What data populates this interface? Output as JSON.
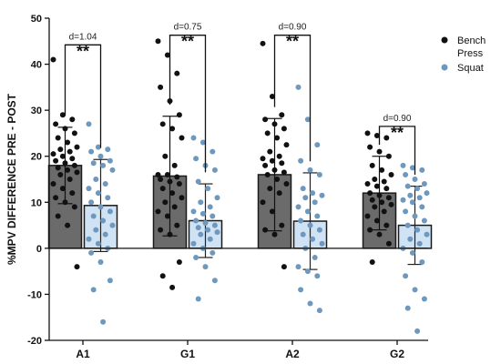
{
  "chart_data": {
    "type": "bar",
    "ylabel": "%MPV DIFFERENCE PRE - POST",
    "ylim": [
      -20,
      50
    ],
    "yticks": [
      -20,
      -10,
      0,
      10,
      20,
      30,
      40,
      50
    ],
    "categories": [
      "A1",
      "G1",
      "A2",
      "G2"
    ],
    "grid": false,
    "legend_position": "top-right",
    "colors": {
      "bench_bar": "#6b6b6b",
      "squat_bar": "#cfe3f4",
      "bench_point": "#111111",
      "squat_point": "#6f98be",
      "squat_bar_edge": "#1a1a1a"
    },
    "series": [
      {
        "name": "Bench Press",
        "values": [
          18,
          15.7,
          16,
          12
        ],
        "sd": [
          8.3,
          13,
          12.2,
          8
        ],
        "points": [
          [
            41,
            29,
            28,
            27,
            26,
            25,
            24,
            23,
            22,
            21.5,
            21,
            20.5,
            20,
            19.5,
            19,
            18.5,
            18,
            17.5,
            17,
            16.5,
            16,
            15,
            14,
            13,
            12,
            11,
            10,
            9,
            7,
            5,
            -4
          ],
          [
            45,
            42,
            38,
            35,
            32,
            29,
            27,
            26,
            24,
            20,
            18,
            16,
            16,
            15.5,
            15,
            14.5,
            14,
            13,
            12,
            11,
            10,
            9,
            8,
            7,
            5,
            4,
            3,
            -3,
            -6,
            -8.5
          ],
          [
            44.5,
            33,
            29,
            28,
            27,
            26,
            25,
            24,
            22.5,
            21,
            20,
            19.5,
            19,
            18.5,
            18,
            17,
            16.5,
            16,
            15,
            14,
            13,
            12,
            10,
            8,
            5,
            4,
            3,
            -4
          ],
          [
            25,
            24.5,
            24,
            22,
            21,
            20,
            18,
            17,
            16,
            15,
            14.5,
            14,
            13.5,
            13,
            12,
            11.5,
            11,
            10.5,
            10,
            9.5,
            9,
            8,
            7,
            6,
            5,
            4,
            3,
            1,
            -3
          ]
        ]
      },
      {
        "name": "Squat",
        "values": [
          9.3,
          6,
          5.9,
          5
        ],
        "sd": [
          10,
          8,
          10.5,
          8.5
        ],
        "points": [
          [
            27,
            22,
            21.5,
            21,
            20,
            19,
            18.5,
            18,
            17,
            15,
            14,
            13,
            12,
            11,
            10,
            9,
            8,
            7,
            6,
            5,
            4,
            3,
            2,
            1,
            0,
            -1,
            -3,
            -7,
            -9,
            -16
          ],
          [
            24,
            23,
            21,
            19.5,
            18,
            17,
            14.5,
            13,
            11,
            10,
            9,
            8,
            7.5,
            7,
            6,
            5.5,
            5,
            4.5,
            4,
            3.5,
            3,
            2,
            1,
            0,
            -1,
            -2,
            -4,
            -7,
            -11
          ],
          [
            35,
            28,
            22.5,
            19,
            17,
            16,
            13,
            12,
            11.5,
            11,
            10,
            9,
            8,
            7,
            6,
            5,
            4,
            3,
            2,
            1,
            0,
            -2,
            -4,
            -5,
            -6,
            -9,
            -12,
            -13.5
          ],
          [
            18,
            17.5,
            17,
            16,
            15,
            14,
            13.5,
            13,
            12,
            11.5,
            11,
            10.5,
            10,
            9,
            8,
            7,
            6,
            5,
            4,
            3,
            2,
            1,
            0,
            -1,
            -3,
            -6,
            -9,
            -11,
            -13,
            -18
          ]
        ]
      }
    ],
    "annotations": [
      {
        "category": "A1",
        "effect": "d=1.04",
        "sig": "**"
      },
      {
        "category": "G1",
        "effect": "d=0.75",
        "sig": "**"
      },
      {
        "category": "A2",
        "effect": "d=0.90",
        "sig": "**"
      },
      {
        "category": "G2",
        "effect": "d=0.90",
        "sig": "**"
      }
    ],
    "legend": [
      {
        "label": "Bench\nPress",
        "icon": "filled-circle-black"
      },
      {
        "label": "Squat",
        "icon": "filled-circle-blue"
      }
    ]
  }
}
